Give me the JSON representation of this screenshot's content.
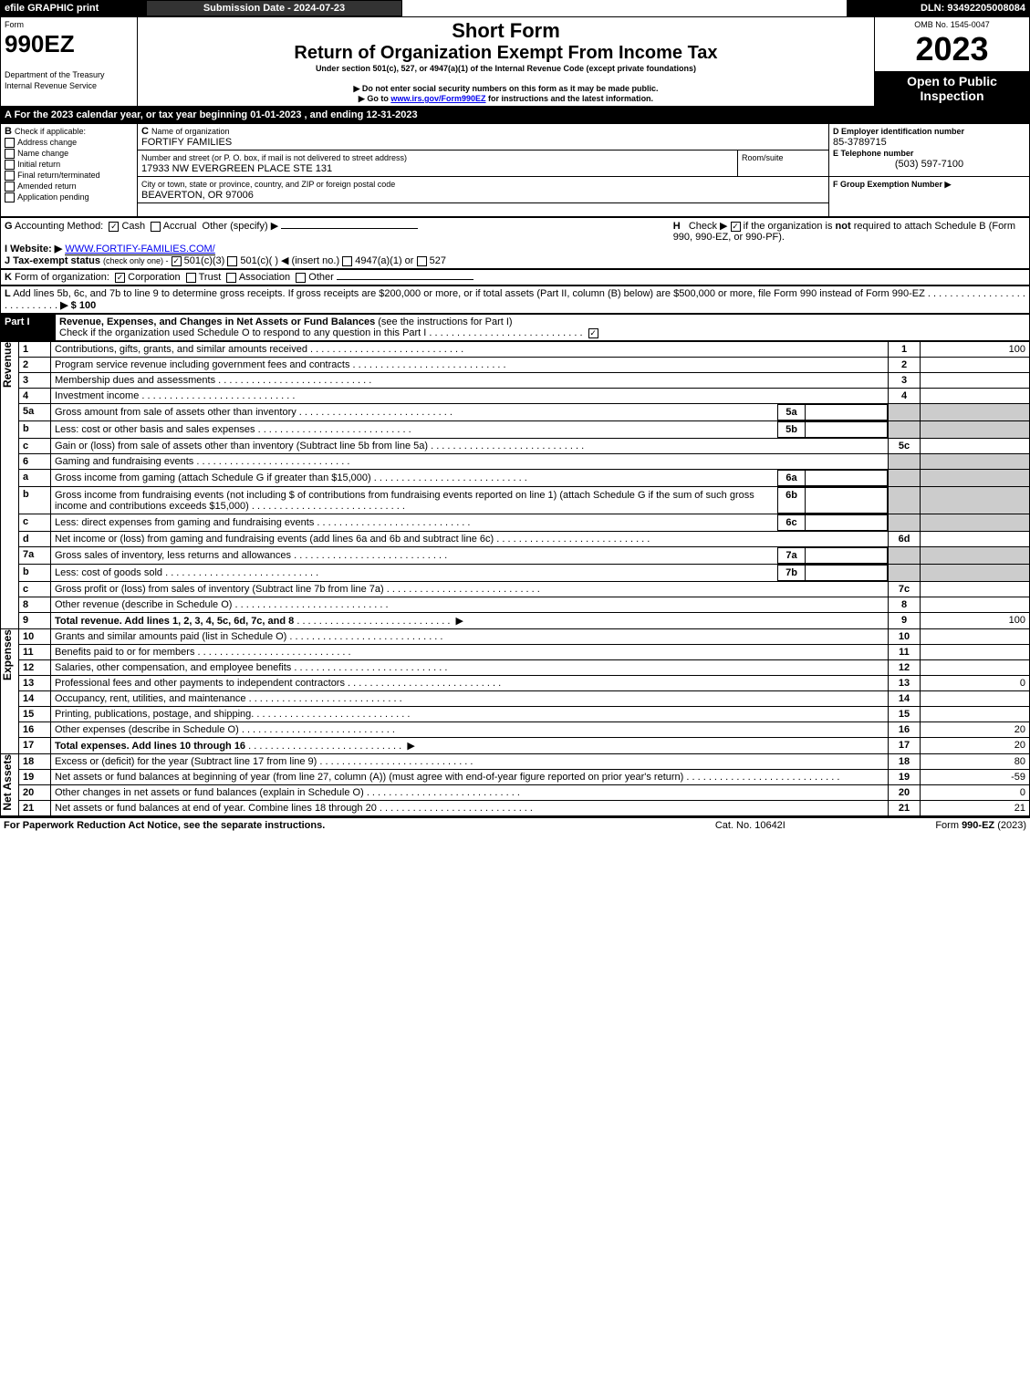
{
  "topbar": {
    "efile": "efile GRAPHIC print",
    "submission": "Submission Date - 2024-07-23",
    "dln": "DLN: 93492205008084"
  },
  "header": {
    "form_label": "Form",
    "form_no": "990EZ",
    "dept": "Department of the Treasury",
    "irs": "Internal Revenue Service",
    "short_form": "Short Form",
    "title": "Return of Organization Exempt From Income Tax",
    "subtitle": "Under section 501(c), 527, or 4947(a)(1) of the Internal Revenue Code (except private foundations)",
    "warn1": "▶ Do not enter social security numbers on this form as it may be made public.",
    "warn2": "▶ Go to ",
    "link": "www.irs.gov/Form990EZ",
    "warn2b": " for instructions and the latest information.",
    "omb": "OMB No. 1545-0047",
    "year": "2023",
    "open": "Open to Public Inspection"
  },
  "A": {
    "text": "A  For the 2023 calendar year, or tax year beginning 01-01-2023  , and ending 12-31-2023"
  },
  "B": {
    "label": "B",
    "check_label": "Check if applicable:",
    "opts": [
      "Address change",
      "Name change",
      "Initial return",
      "Final return/terminated",
      "Amended return",
      "Application pending"
    ]
  },
  "C": {
    "label": "C",
    "name_label": "Name of organization",
    "name": "FORTIFY FAMILIES",
    "addr_label": "Number and street (or P. O. box, if mail is not delivered to street address)",
    "room_label": "Room/suite",
    "addr": "17933 NW EVERGREEN PLACE STE 131",
    "city_label": "City or town, state or province, country, and ZIP or foreign postal code",
    "city": "BEAVERTON, OR   97006"
  },
  "D": {
    "label": "D Employer identification number",
    "value": "85-3789715"
  },
  "E": {
    "label": "E Telephone number",
    "value": "(503) 597-7100"
  },
  "F": {
    "label": "F Group Exemption Number   ▶"
  },
  "G": {
    "label": "G",
    "text": "Accounting Method:",
    "cash": "Cash",
    "accrual": "Accrual",
    "other": "Other (specify) ▶"
  },
  "H": {
    "label": "H",
    "text": "Check ▶",
    "text2": "if the organization is ",
    "not": "not",
    "text3": " required to attach Schedule B (Form 990, 990-EZ, or 990-PF)."
  },
  "I": {
    "label": "I Website: ▶",
    "value": "WWW.FORTIFY-FAMILIES.COM/"
  },
  "J": {
    "label": "J Tax-exempt status",
    "sub": "(check only one) -",
    "a": "501(c)(3)",
    "b": "501(c)(   ) ◀ (insert no.)",
    "c": "4947(a)(1) or",
    "d": "527"
  },
  "K": {
    "label": "K",
    "text": "Form of organization:",
    "opts": [
      "Corporation",
      "Trust",
      "Association",
      "Other"
    ]
  },
  "L": {
    "label": "L",
    "text": "Add lines 5b, 6c, and 7b to line 9 to determine gross receipts. If gross receipts are $200,000 or more, or if total assets (Part II, column (B) below) are $500,000 or more, file Form 990 instead of Form 990-EZ",
    "arrow": "▶ $ 100"
  },
  "part1": {
    "label": "Part I",
    "title": "Revenue, Expenses, and Changes in Net Assets or Fund Balances",
    "sub": "(see the instructions for Part I)",
    "check_text": "Check if the organization used Schedule O to respond to any question in this Part I"
  },
  "sections": {
    "revenue": "Revenue",
    "expenses": "Expenses",
    "netassets": "Net Assets"
  },
  "lines": [
    {
      "n": "1",
      "t": "Contributions, gifts, grants, and similar amounts received",
      "r": "1",
      "v": "100"
    },
    {
      "n": "2",
      "t": "Program service revenue including government fees and contracts",
      "r": "2",
      "v": ""
    },
    {
      "n": "3",
      "t": "Membership dues and assessments",
      "r": "3",
      "v": ""
    },
    {
      "n": "4",
      "t": "Investment income",
      "r": "4",
      "v": ""
    },
    {
      "n": "5a",
      "t": "Gross amount from sale of assets other than inventory",
      "mid": "5a",
      "r": "",
      "v": ""
    },
    {
      "n": "b",
      "t": "Less: cost or other basis and sales expenses",
      "mid": "5b",
      "r": "",
      "v": ""
    },
    {
      "n": "c",
      "t": "Gain or (loss) from sale of assets other than inventory (Subtract line 5b from line 5a)",
      "r": "5c",
      "v": ""
    },
    {
      "n": "6",
      "t": "Gaming and fundraising events",
      "r": "",
      "v": ""
    },
    {
      "n": "a",
      "t": "Gross income from gaming (attach Schedule G if greater than $15,000)",
      "mid": "6a",
      "r": "",
      "v": ""
    },
    {
      "n": "b",
      "t": "Gross income from fundraising events (not including $                   of contributions from fundraising events reported on line 1) (attach Schedule G if the sum of such gross income and contributions exceeds $15,000)",
      "mid": "6b",
      "r": "",
      "v": ""
    },
    {
      "n": "c",
      "t": "Less: direct expenses from gaming and fundraising events",
      "mid": "6c",
      "r": "",
      "v": ""
    },
    {
      "n": "d",
      "t": "Net income or (loss) from gaming and fundraising events (add lines 6a and 6b and subtract line 6c)",
      "r": "6d",
      "v": ""
    },
    {
      "n": "7a",
      "t": "Gross sales of inventory, less returns and allowances",
      "mid": "7a",
      "r": "",
      "v": ""
    },
    {
      "n": "b",
      "t": "Less: cost of goods sold",
      "mid": "7b",
      "r": "",
      "v": ""
    },
    {
      "n": "c",
      "t": "Gross profit or (loss) from sales of inventory (Subtract line 7b from line 7a)",
      "r": "7c",
      "v": ""
    },
    {
      "n": "8",
      "t": "Other revenue (describe in Schedule O)",
      "r": "8",
      "v": ""
    },
    {
      "n": "9",
      "t": "Total revenue. Add lines 1, 2, 3, 4, 5c, 6d, 7c, and 8",
      "r": "9",
      "v": "100",
      "bold": true,
      "arrow": true
    },
    {
      "n": "10",
      "t": "Grants and similar amounts paid (list in Schedule O)",
      "r": "10",
      "v": ""
    },
    {
      "n": "11",
      "t": "Benefits paid to or for members",
      "r": "11",
      "v": ""
    },
    {
      "n": "12",
      "t": "Salaries, other compensation, and employee benefits",
      "r": "12",
      "v": ""
    },
    {
      "n": "13",
      "t": "Professional fees and other payments to independent contractors",
      "r": "13",
      "v": "0"
    },
    {
      "n": "14",
      "t": "Occupancy, rent, utilities, and maintenance",
      "r": "14",
      "v": ""
    },
    {
      "n": "15",
      "t": "Printing, publications, postage, and shipping.",
      "r": "15",
      "v": ""
    },
    {
      "n": "16",
      "t": "Other expenses (describe in Schedule O)",
      "r": "16",
      "v": "20"
    },
    {
      "n": "17",
      "t": "Total expenses. Add lines 10 through 16",
      "r": "17",
      "v": "20",
      "bold": true,
      "arrow": true
    },
    {
      "n": "18",
      "t": "Excess or (deficit) for the year (Subtract line 17 from line 9)",
      "r": "18",
      "v": "80"
    },
    {
      "n": "19",
      "t": "Net assets or fund balances at beginning of year (from line 27, column (A)) (must agree with end-of-year figure reported on prior year's return)",
      "r": "19",
      "v": "-59"
    },
    {
      "n": "20",
      "t": "Other changes in net assets or fund balances (explain in Schedule O)",
      "r": "20",
      "v": "0"
    },
    {
      "n": "21",
      "t": "Net assets or fund balances at end of year. Combine lines 18 through 20",
      "r": "21",
      "v": "21"
    }
  ],
  "footer": {
    "left": "For Paperwork Reduction Act Notice, see the separate instructions.",
    "mid": "Cat. No. 10642I",
    "right_a": "Form ",
    "right_b": "990-EZ",
    "right_c": " (2023)"
  },
  "colors": {
    "black": "#000000",
    "gray": "#cccccc",
    "link": "#0000ee"
  }
}
